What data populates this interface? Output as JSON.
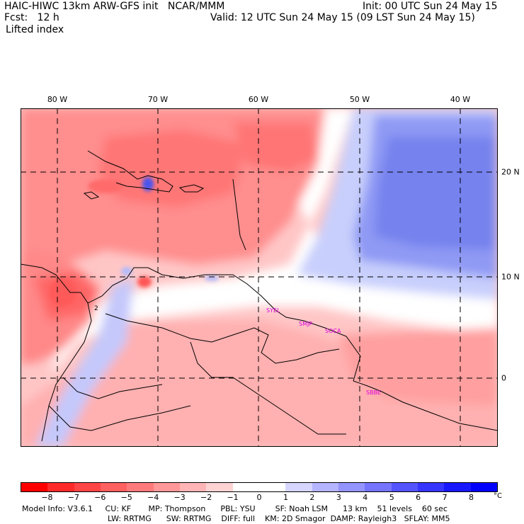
{
  "header": {
    "model_title": "HAIC-HIWC 13km ARW-GFS init   NCAR/MMM",
    "forecast": "Fcst:   12 h",
    "field": "Lifted index",
    "init": "Init: 00 UTC Sun 24 May 15",
    "valid": "Valid: 12 UTC Sun 24 May 15 (09 LST Sun 24 May 15)"
  },
  "map": {
    "lon_labels": [
      "80 W",
      "70 W",
      "60 W",
      "50 W",
      "40 W"
    ],
    "lat_labels": [
      "20 N",
      "10 N",
      "0"
    ],
    "stations": [
      "SYEL",
      "SMJP",
      "SOCA",
      "SBBE"
    ],
    "contour_label": "2",
    "colors": {
      "coast": "#000000",
      "station_text": "#dd00dd",
      "grid": "#000000"
    }
  },
  "colorbar": {
    "colors": [
      "#ff0000",
      "#ff2a2a",
      "#ff4545",
      "#ff6060",
      "#ff7b7b",
      "#ff9898",
      "#ffb5b5",
      "#ffd3d3",
      "#ffffff",
      "#ffffff",
      "#d6d6ff",
      "#b4b4ff",
      "#9494ff",
      "#7474ff",
      "#5454ff",
      "#3535ff",
      "#1818ff",
      "#0000ff"
    ],
    "ticks": [
      "−8",
      "−7",
      "−6",
      "−5",
      "−4",
      "−3",
      "−2",
      "−1",
      "0",
      "1",
      "2",
      "3",
      "4",
      "5",
      "6",
      "7",
      "8"
    ],
    "unit": "°C"
  },
  "model_info": {
    "line1": "Model Info: V3.6.1     CU: KF       MP: Thompson      PBL: YSU        SF: Noah LSM      13 km    51 levels    60 sec",
    "line2": "LW: RRTMG      SW: RRTMG    DIFF: full    KM: 2D Smagor  DAMP: Rayleigh3   SFLAY: MM5"
  }
}
